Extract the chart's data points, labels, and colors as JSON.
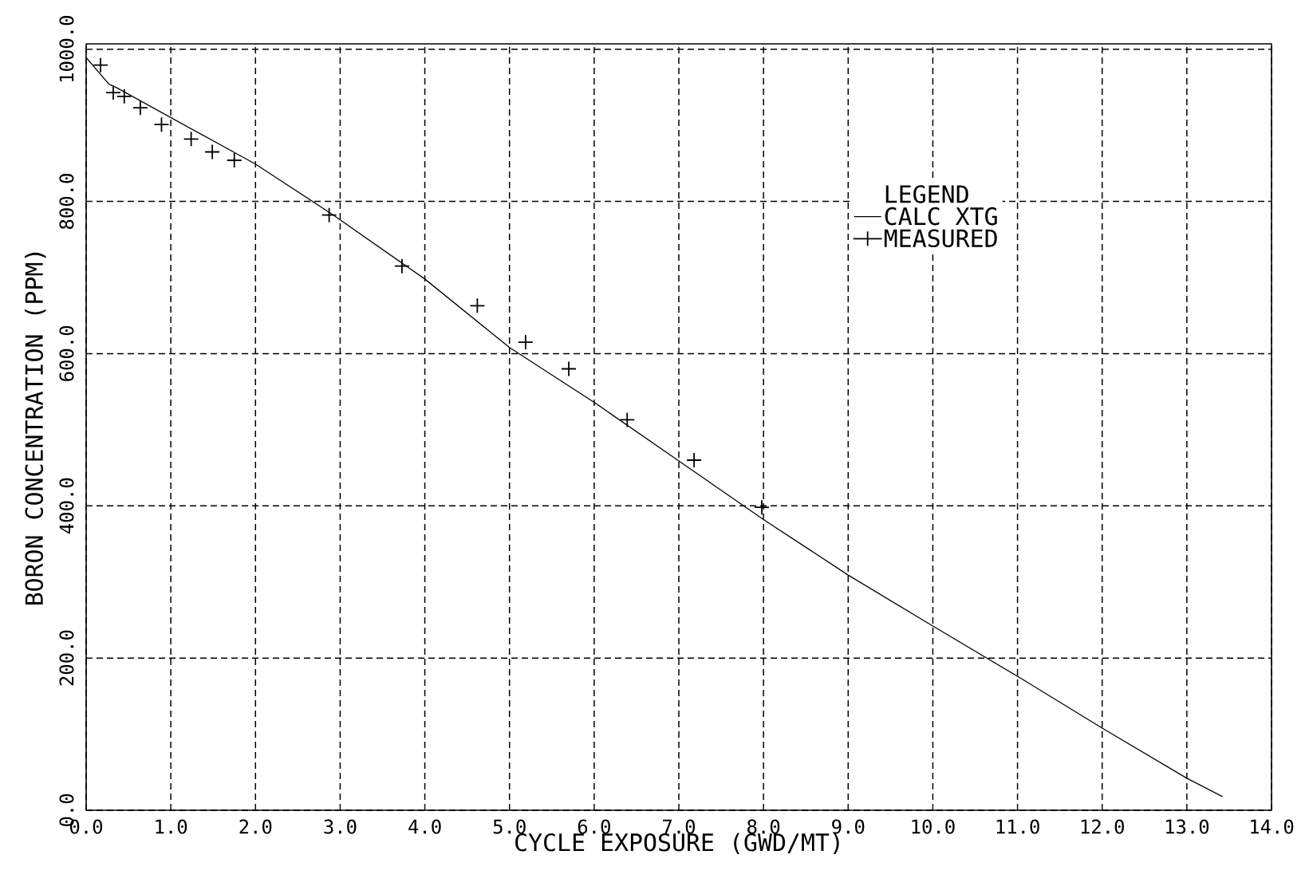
{
  "chart_data": {
    "type": "line",
    "xlabel": "CYCLE EXPOSURE (GWD/MT)",
    "ylabel": "BORON CONCENTRATION (PPM)",
    "legend_title": "LEGEND",
    "series": [
      {
        "name": "CALC XTG",
        "type": "line",
        "color": "#000000",
        "marker": "none",
        "line_style": "solid",
        "x": [
          0,
          0.27,
          0.35,
          2.0,
          2.92,
          4.0,
          5.0,
          6.0,
          7.0,
          8.0,
          9.0,
          10.0,
          11.0,
          12.0,
          13.0,
          13.42
        ],
        "values": [
          989,
          954,
          950,
          849,
          782,
          698,
          608,
          536,
          459,
          382,
          309,
          242,
          176,
          108,
          42,
          18
        ]
      },
      {
        "name": "MEASURED",
        "type": "scatter",
        "color": "#000000",
        "marker": "cross",
        "x": [
          0.17,
          0.32,
          0.45,
          0.64,
          0.89,
          1.24,
          1.49,
          1.75,
          2.87,
          3.73,
          4.62,
          5.19,
          5.7,
          6.39,
          7.18,
          7.98
        ],
        "values": [
          979,
          943,
          938,
          923,
          901,
          882,
          865,
          854,
          782,
          715,
          663,
          615,
          580,
          513,
          460,
          398
        ]
      }
    ],
    "xlim": [
      0,
      14
    ],
    "ylim": [
      0,
      1007
    ],
    "xticks": [
      {
        "value": 0,
        "label": "0.0"
      },
      {
        "value": 1,
        "label": "1.0"
      },
      {
        "value": 2,
        "label": "2.0"
      },
      {
        "value": 3,
        "label": "3.0"
      },
      {
        "value": 4,
        "label": "4.0"
      },
      {
        "value": 5,
        "label": "5.0"
      },
      {
        "value": 6,
        "label": "6.0"
      },
      {
        "value": 7,
        "label": "7.0"
      },
      {
        "value": 8,
        "label": "8.0"
      },
      {
        "value": 9,
        "label": "9.0"
      },
      {
        "value": 10,
        "label": "10.0"
      },
      {
        "value": 11,
        "label": "11.0"
      },
      {
        "value": 12,
        "label": "12.0"
      },
      {
        "value": 13,
        "label": "13.0"
      },
      {
        "value": 14,
        "label": "14.0"
      }
    ],
    "yticks": [
      {
        "value": 0,
        "label": "0.0"
      },
      {
        "value": 200,
        "label": "200.0"
      },
      {
        "value": 400,
        "label": "400.0"
      },
      {
        "value": 600,
        "label": "600.0"
      },
      {
        "value": 800,
        "label": "800.0"
      },
      {
        "value": 1000,
        "label": "1000.0"
      }
    ],
    "grid": true,
    "legend": "top right"
  }
}
